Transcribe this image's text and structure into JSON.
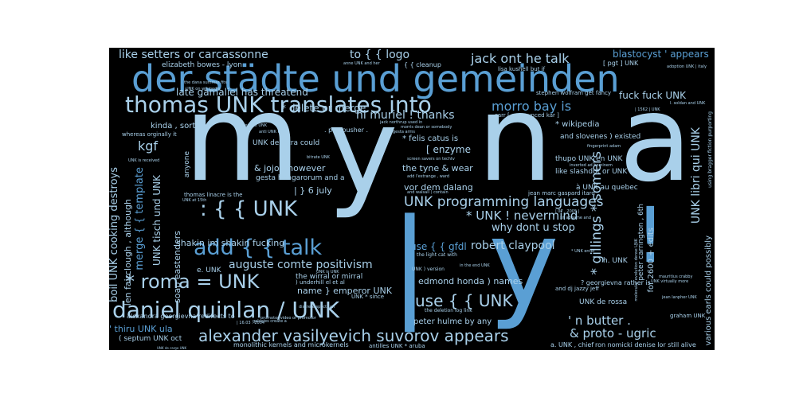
{
  "palette": {
    "background": "#000000",
    "light": "#a9d0ea",
    "mid": "#5a9fd4",
    "deep": "#2f6fae",
    "frame": "#ffffff"
  },
  "words": {
    "myna_m": "m",
    "myna_y": "y",
    "myna_n": "n",
    "myna_a": "a",
    "pipe": "|",
    "bang": "!",
    "der_stadte": "der städte und gemeinden",
    "thomas_unk": "thomas UNK translates into",
    "daniel": "daniel quinlan / UNK",
    "alexander": "alexander vasilyevich suvorov appears",
    "roma": "* roma = UNK",
    "add_talk": "add { { talk",
    "brace_unk": ": { { UNK",
    "use_unk": "use { { UNK",
    "unk_prog": "UNK programming languages",
    "like_setters": "like setters or carcassonne",
    "to_logo": "to { { logo",
    "jack_ont": "jack ont he talk",
    "morro": "morro bay is",
    "fuck_fuck": "fuck fuck UNK",
    "blastocyst": "blastocyst ' appears",
    "late_gamaliel": "late gamaliel has threatend",
    "hi_muriel": "hi muriel ! thanks",
    "delete_merge": "* delete or merge",
    "kgf": "kgf",
    "nevermind": "* UNK ! nevermind",
    "why_dont": "why dont u stop",
    "gillings": "* gillings * somers",
    "auguste": "auguste comte positivism",
    "shakin": "shakin im shakin fucking",
    "robert": "robert claypool",
    "use_gfdl": "use { { gfdl",
    "edmond": "edmond honda ) names",
    "n_butter": "' n butter .",
    "proto": "& proto - ugric",
    "peter_hulme": "peter hulme by any",
    "enzyme": "[ enzyme",
    "tyne": "the tyne & wear",
    "vor_dem": "vor dem dalang",
    "six_july": "| } 6 july",
    "jojo": "& jojo , however",
    "name_emperor": "name } emperor UNK",
    "wirral": "the wirral or mirral",
    "unk_libri": "UNK libri qui UNK",
    "boil_unk": "boil UNK cooking destroys",
    "merge_template": "merge { { template",
    "thiru": "' thiru UNK ula",
    "soap": "soap eastenders",
    "len_fair": "len fairclough , although",
    "unk_tisch": "UNK tisch und UNK",
    "gesta": "gesta hungarorum and a",
    "felis": "* felis catus is",
    "kinda": "kinda , sorta",
    "elizabeth": "elizabeth bowes - lyon",
    "wikipedia": "* wikipedia",
    "for_2600": "for 2600 + edits",
    "various": "various earls could possibly",
    "unk_de_rossa": "UNK de rossa",
    "septum": "( septum UNK oct",
    "monolithic": "monolithic kernels and microkernels",
    "ron_nomicki": "ron nomicki denise lor still alive",
    "a_unk_quebec": "à UNK au quebec",
    "e_unk": "e. UNK",
    "anyone": "anyone",
    "unk_de_letra": "UNK de letra could",
    "pov_pusher": ". pov pusher .",
    "alexandra": "alexandra georgievna redirects to",
    "underhill": ") underhill el et al",
    "h_unk": "h. UNK",
    "peter_carr": "peter carrington , 6th",
    "like_slash": "like slashdot or UNK",
    "a_unk_chief": "a. UNK , chief",
    "thupo": "thupo UNK en UNK",
    "and_slovenes": "and slovenes ) existed",
    "thomas_linacre": "thomas linacre is the",
    "jean_marc": "jean marc gaspard itard",
    "georgievna": "? georgievna rather is",
    "graham": "graham UNK",
    "schiller": "[ pgt ] UNK",
    "whereas": "whereas orginally it",
    "cleanup": "{ { cleanup",
    "lisa": "lisa kushell but if",
    "stephen": "stephen wolfram get fancy",
    "carr": "carr [ pronounced kar ]",
    "tiny_1": "the dana summer fits",
    "tiny_2": "UNK on wikipedia",
    "tiny_3": "anne UNK and her",
    "tiny_4": "jack northrup used in",
    "tiny_5": "morris dean or somebody",
    "tiny_6": "screen savers on techtv",
    "tiny_7": "add l'estrange , ward",
    "tiny_8": "and walsall ) contain",
    "tiny_9": "the light cat with",
    "tiny_10": "UNK ) version",
    "tiny_11": "and dj jazzy jeff",
    "tiny_12": "the deletion log link",
    "tiny_13": "galaxies create a",
    "tiny_14": "promotor video or promotor",
    "tiny_15": "discrete spectrum",
    "tiny_16": "antilles UNK * aruba",
    "tiny_17": "jean lanpher UNK",
    "tiny_18": "UNK virtually more",
    "tiny_19": "mauritius crabby",
    "tiny_20": "UNK is received",
    "tiny_21": "inverted ad hominem",
    "tiny_22": "UNK * since",
    "tiny_23": "UNK is UNK",
    "tiny_24": "gesta arms",
    "tiny_25": "fingerprint adam",
    "tiny_26": "l. soldan and UNK",
    "tiny_27": "| 1562 | UNK",
    "tiny_28": "adoption UNK | italy",
    "tiny_29": "using bragger fiction purporting",
    "tiny_30": "molecular evolution dense UNK",
    "tiny_31": "nehmen die UNK",
    "tiny_32": "anti UNK lead",
    "tiny_33": "bitrate UNK",
    "tiny_34": "| 16.03 . 2004",
    "tiny_35": "UNK at 15th",
    "tiny_36": "| 07 . 2005 |",
    "tiny_37": "sit abgame and",
    "tiny_38": "* UNK enter",
    "tiny_39": "in the end UNK",
    "tiny_40": "UNK de cargo UNK"
  }
}
